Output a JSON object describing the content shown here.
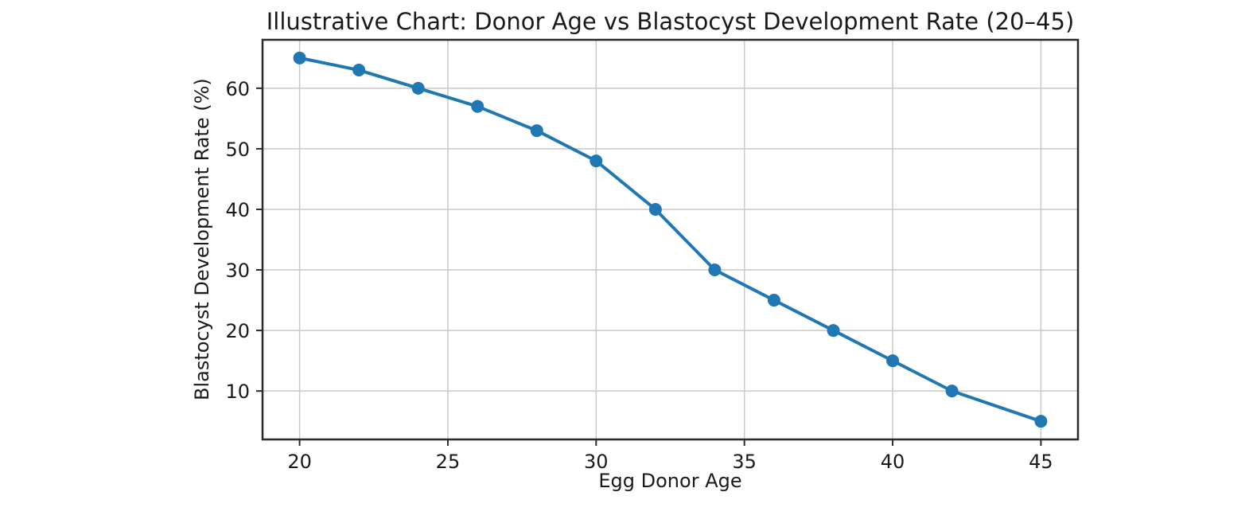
{
  "chart_data": {
    "type": "line",
    "title": "Illustrative Chart: Donor Age vs Blastocyst Development Rate (20–45)",
    "xlabel": "Egg Donor Age",
    "ylabel": "Blastocyst Development Rate (%)",
    "series": [
      {
        "name": "Blastocyst Development Rate",
        "x": [
          20,
          22,
          24,
          26,
          28,
          30,
          32,
          34,
          36,
          38,
          40,
          42,
          45
        ],
        "y": [
          65,
          63,
          60,
          57,
          53,
          48,
          40,
          30,
          25,
          20,
          15,
          10,
          5
        ]
      }
    ],
    "x_ticks": [
      20,
      25,
      30,
      35,
      40,
      45
    ],
    "y_ticks": [
      10,
      20,
      30,
      40,
      50,
      60
    ],
    "xlim": [
      18.75,
      46.25
    ],
    "ylim": [
      2,
      68
    ],
    "grid": true,
    "legend": "none",
    "style": {
      "line_color": "#1f77b4",
      "marker": "circle",
      "marker_radius": 8,
      "line_width": 4,
      "grid_color": "#c8c8c8",
      "axis_color": "#2a2a2a",
      "background_color": "#ffffff"
    }
  }
}
